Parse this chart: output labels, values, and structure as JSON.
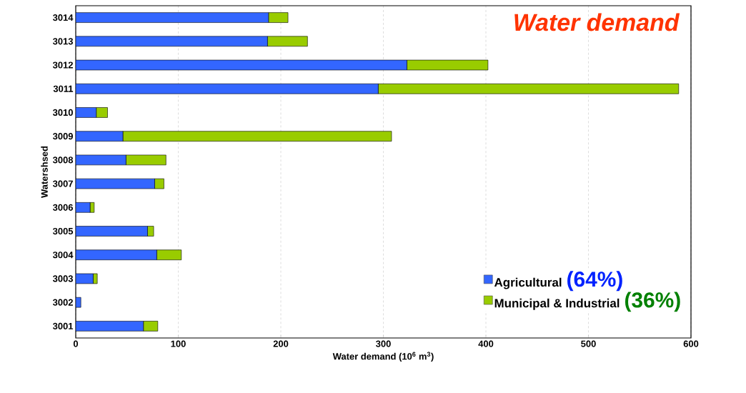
{
  "chart_data": {
    "type": "bar",
    "orientation": "horizontal",
    "stacked": true,
    "title": "Water demand",
    "xlabel": "Water demand (10$^{6}$ m$^{3}$)",
    "ylabel": "Watershsed",
    "categories": [
      "3014",
      "3013",
      "3012",
      "3011",
      "3010",
      "3009",
      "3008",
      "3007",
      "3006",
      "3005",
      "3004",
      "3003",
      "3002",
      "3001"
    ],
    "series": [
      {
        "name": "Agricultural",
        "color": "#3366ff",
        "values": [
          188,
          187,
          323,
          295,
          20,
          46,
          49,
          77,
          14,
          70,
          79,
          17,
          5,
          66
        ]
      },
      {
        "name": "Municipal & Industrial",
        "color": "#99cc00",
        "values": [
          19,
          39,
          79,
          293,
          11,
          262,
          39,
          9,
          4,
          6,
          24,
          4,
          0,
          14
        ]
      }
    ],
    "xlim": [
      0,
      600
    ],
    "xticks": [
      0,
      100,
      200,
      300,
      400,
      500,
      600
    ],
    "grid": "x",
    "legend": "bottom right",
    "annotations": [
      "(64%)",
      "(36%)"
    ]
  }
}
